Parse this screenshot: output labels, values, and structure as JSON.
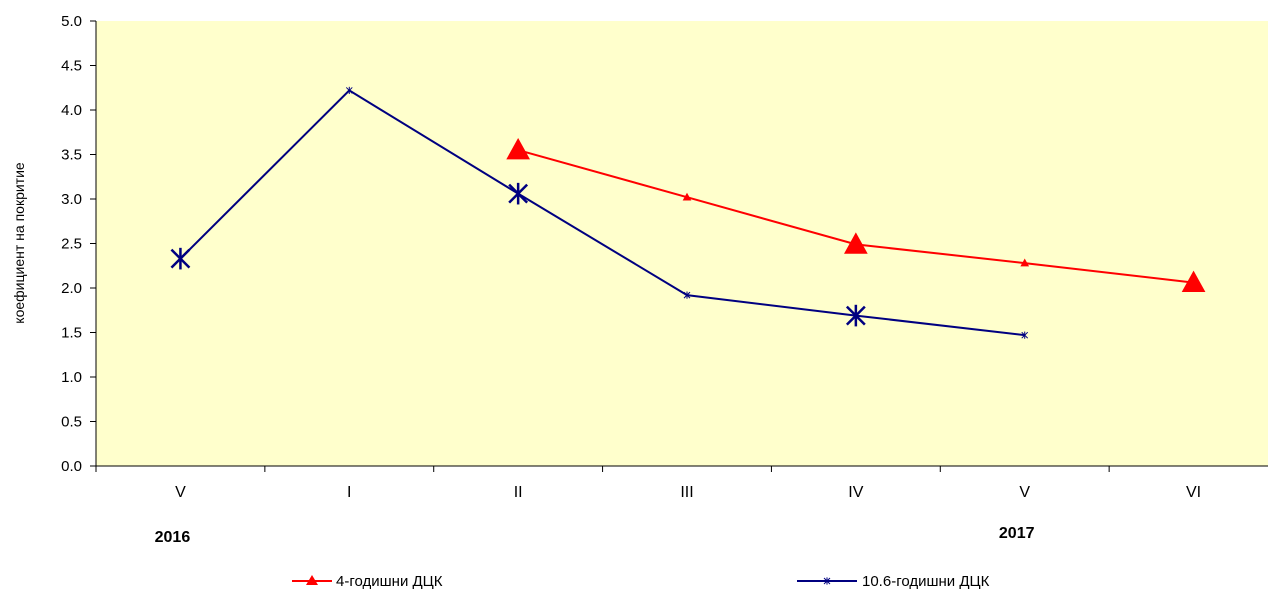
{
  "chart_data": {
    "type": "line",
    "ylabel": "коефициент на покритие",
    "xlabel": "",
    "ylim": [
      0,
      5
    ],
    "y_ticks": [
      "0.0",
      "0.5",
      "1.0",
      "1.5",
      "2.0",
      "2.5",
      "3.0",
      "3.5",
      "4.0",
      "4.5",
      "5.0"
    ],
    "categories": [
      "V",
      "I",
      "II",
      "III",
      "IV",
      "V",
      "VI"
    ],
    "year_labels": [
      {
        "text": "2016",
        "category_index": 0
      },
      {
        "text": "2017",
        "category_index": 5
      }
    ],
    "grid": false,
    "legend_position": "bottom",
    "plot_background": "#FFFFCC",
    "series": [
      {
        "name": "4-годишни  ДЦК",
        "color": "#FF0000",
        "marker": "triangle",
        "values": [
          null,
          null,
          3.55,
          3.02,
          2.49,
          2.28,
          2.06
        ]
      },
      {
        "name": "10.6-годишни  ДЦК",
        "color": "#000080",
        "marker": "asterisk",
        "values": [
          2.33,
          4.22,
          3.06,
          1.92,
          1.69,
          1.47,
          null
        ]
      }
    ]
  }
}
